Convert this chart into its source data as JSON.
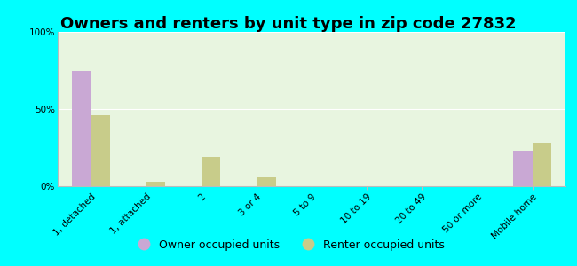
{
  "title": "Owners and renters by unit type in zip code 27832",
  "categories": [
    "1, detached",
    "1, attached",
    "2",
    "3 or 4",
    "5 to 9",
    "10 to 19",
    "20 to 49",
    "50 or more",
    "Mobile home"
  ],
  "owner_values": [
    75,
    0,
    0,
    0,
    0,
    0,
    0,
    0,
    23
  ],
  "renter_values": [
    46,
    3,
    19,
    6,
    0,
    0,
    0,
    0,
    28
  ],
  "owner_color": "#c9a8d4",
  "renter_color": "#c8cc8a",
  "background_color": "#00ffff",
  "ylim": [
    0,
    100
  ],
  "yticks": [
    0,
    50,
    100
  ],
  "ytick_labels": [
    "0%",
    "50%",
    "100%"
  ],
  "bar_width": 0.35,
  "legend_owner": "Owner occupied units",
  "legend_renter": "Renter occupied units",
  "title_fontsize": 13,
  "tick_fontsize": 7.5
}
